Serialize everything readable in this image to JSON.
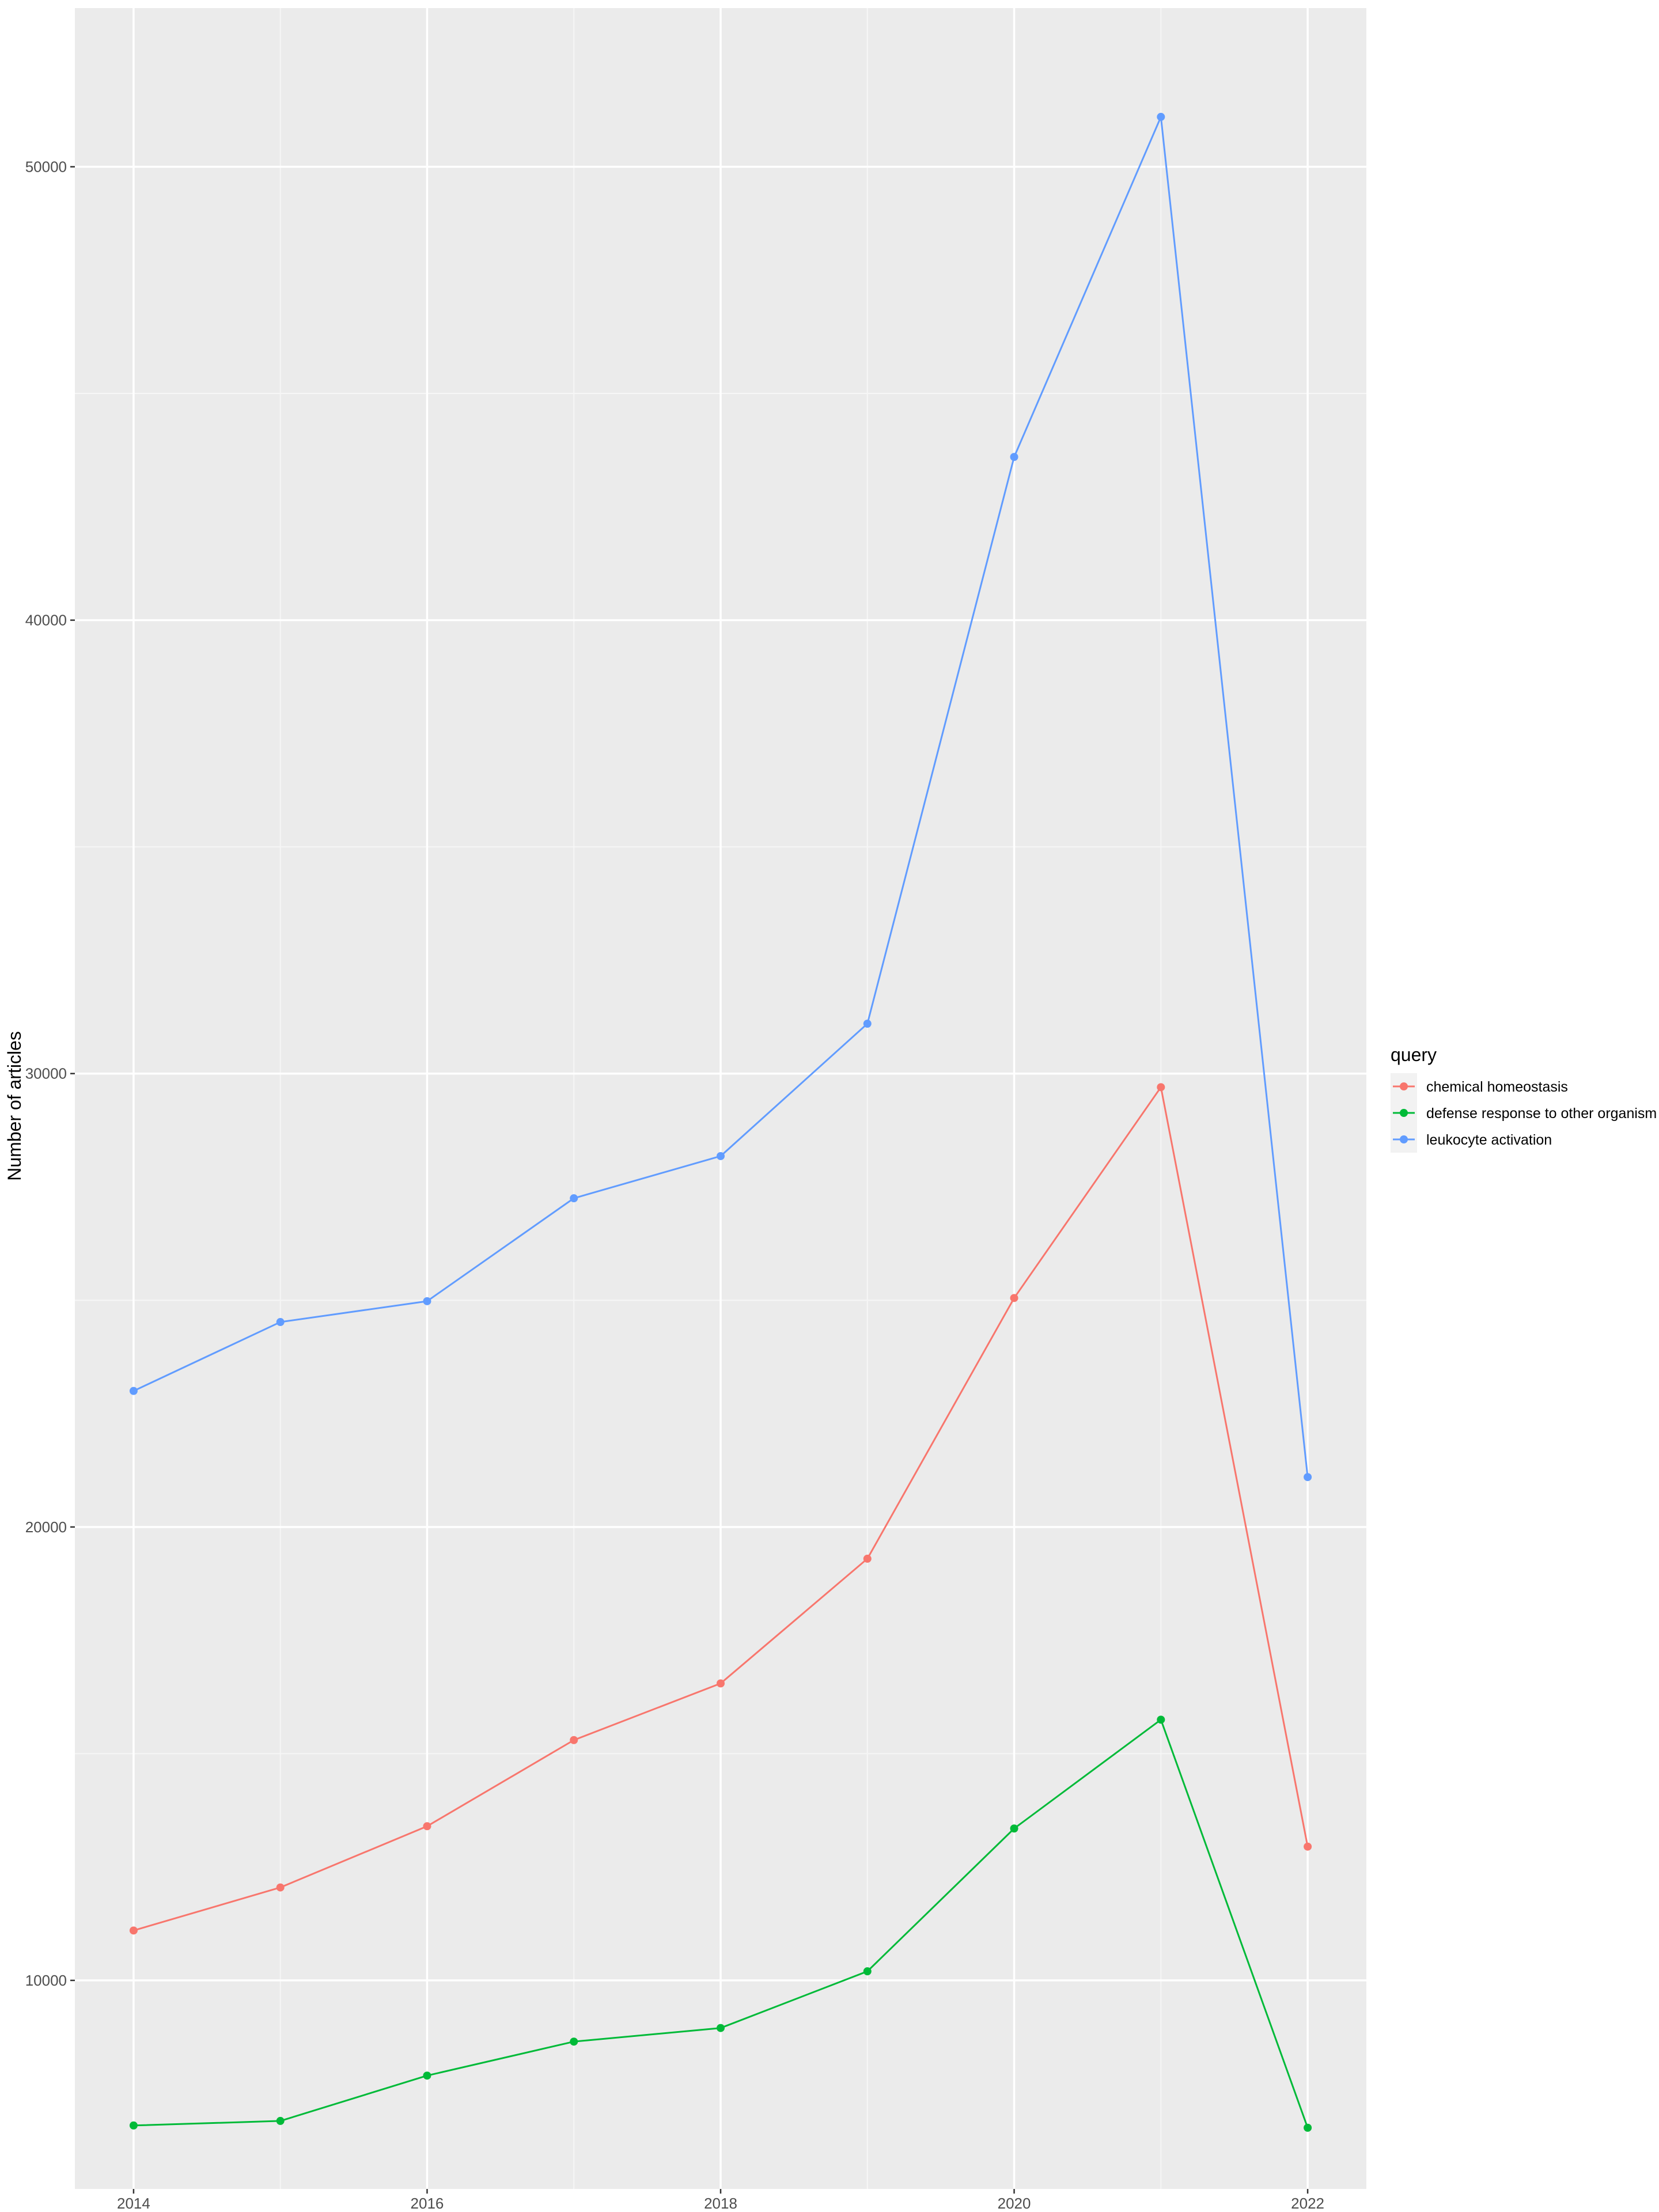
{
  "chart_data": {
    "type": "line",
    "title": "",
    "xlabel": "",
    "ylabel": "Number of articles",
    "x": [
      2014,
      2015,
      2016,
      2017,
      2018,
      2019,
      2020,
      2021,
      2022
    ],
    "x_ticks": [
      2014,
      2016,
      2018,
      2020,
      2022
    ],
    "y_ticks": [
      10000,
      20000,
      30000,
      40000,
      50000
    ],
    "xlim": [
      2013.6,
      2022.4
    ],
    "ylim": [
      5400,
      53500
    ],
    "grid": true,
    "legend": {
      "title": "query",
      "placement": "right"
    },
    "series": [
      {
        "name": "chemical homeostasis",
        "color": "#F8766D",
        "values": [
          11100,
          12050,
          13400,
          15300,
          16550,
          19300,
          25050,
          29700,
          12950
        ]
      },
      {
        "name": "defense response to other organism",
        "color": "#00BA38",
        "values": [
          6800,
          6900,
          7900,
          8650,
          8950,
          10200,
          13350,
          15750,
          6750
        ]
      },
      {
        "name": "leukocyte activation",
        "color": "#619CFF",
        "values": [
          23000,
          24520,
          24980,
          27250,
          28180,
          31100,
          43600,
          51100,
          21100
        ]
      }
    ]
  }
}
